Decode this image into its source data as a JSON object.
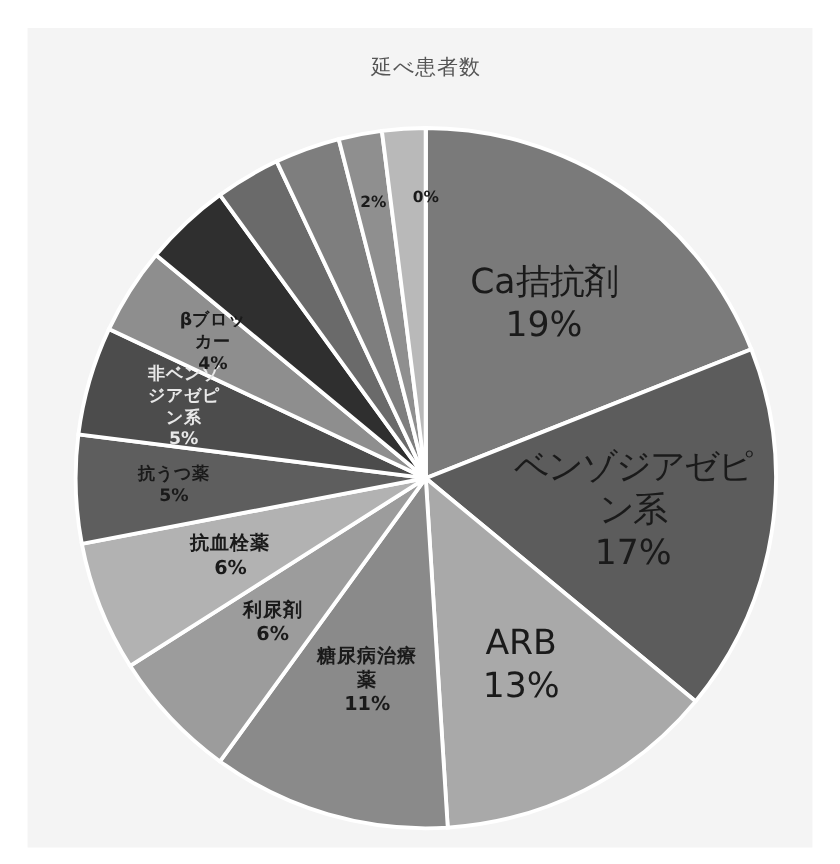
{
  "chart_data": {
    "type": "pie",
    "title": "延べ患者数",
    "categories": [
      "Ca拮抗剤",
      "ベンゾジアゼピン系",
      "ARB",
      "糖尿病治療薬",
      "利尿剤",
      "抗血栓薬",
      "抗うつ薬",
      "非ベンゾジアゼピン系",
      "βブロッカー",
      null,
      null,
      null,
      null,
      null,
      null
    ],
    "values": [
      19,
      17,
      13,
      11,
      6,
      6,
      5,
      5,
      4,
      4,
      3,
      3,
      2,
      2,
      0
    ],
    "colors": [
      "#7a7a7a",
      "#5c5c5c",
      "#a9a9a9",
      "#8a8a8a",
      "#9c9c9c",
      "#b2b2b2",
      "#5e5e5e",
      "#4c4c4c",
      "#8e8e8e",
      "#2f2f2f",
      "#6a6a6a",
      "#7e7e7e",
      "#8f8f8f",
      "#b9b9b9",
      "#d4d4d4"
    ],
    "value_labels": [
      "19%",
      "17%",
      "13%",
      "11%",
      "6%",
      "6%",
      "5%",
      "5%",
      "4%",
      null,
      null,
      null,
      "2%",
      null,
      "0%"
    ]
  }
}
